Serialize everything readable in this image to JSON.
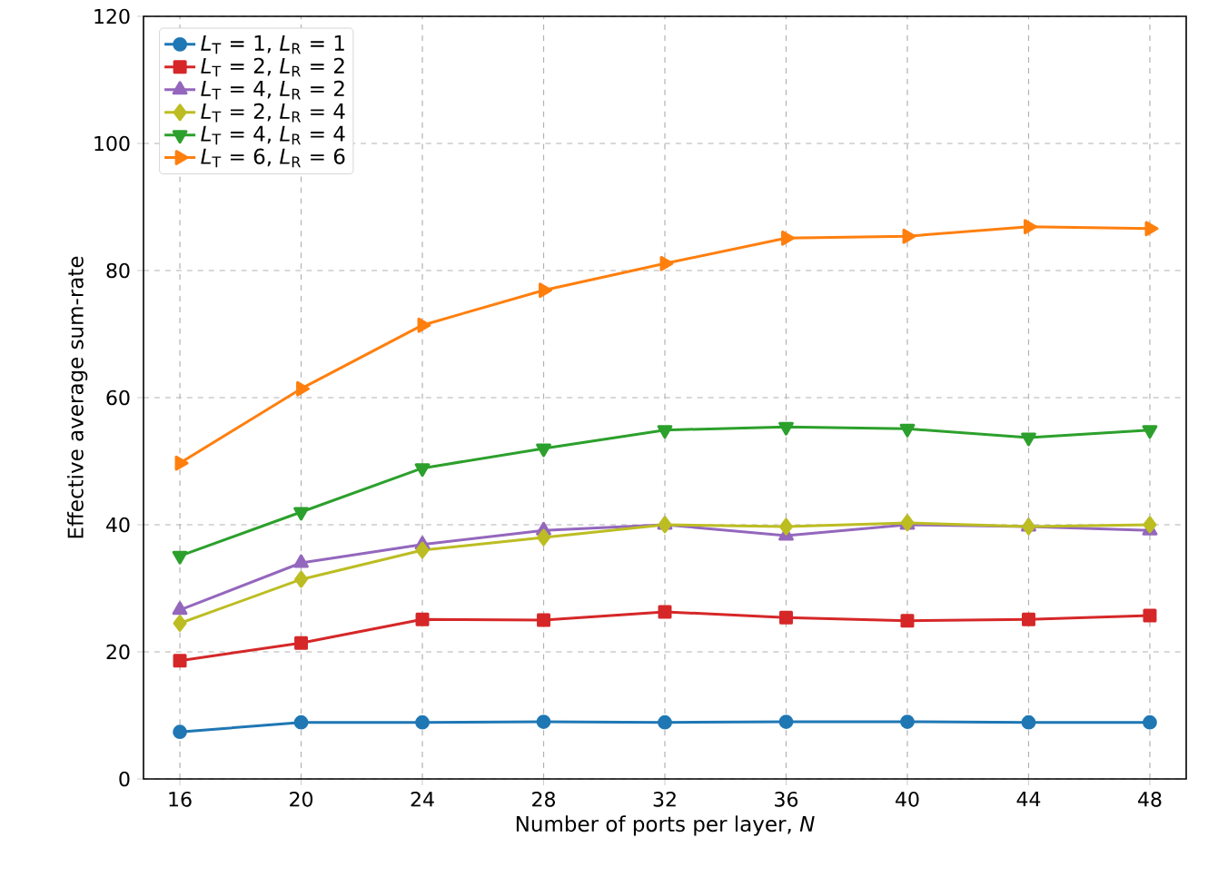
{
  "chart_data": {
    "type": "line",
    "xlabel": "Number of ports per layer, *N*",
    "ylabel": "Effective average sum-rate",
    "x": [
      16,
      20,
      24,
      28,
      32,
      36,
      40,
      44,
      48
    ],
    "series": [
      {
        "name": "*L*$_{T}$ = 1, *L*$_{R}$ = 1",
        "color": "#1f77b4",
        "marker": "circle",
        "values": [
          7.4,
          8.9,
          8.9,
          9.0,
          8.9,
          9.0,
          9.0,
          8.9,
          8.9
        ]
      },
      {
        "name": "*L*$_{T}$ = 2, *L*$_{R}$ = 2",
        "color": "#d62728",
        "marker": "square",
        "values": [
          18.6,
          21.4,
          25.1,
          25.0,
          26.3,
          25.4,
          24.9,
          25.1,
          25.7
        ]
      },
      {
        "name": "*L*$_{T}$ = 4, *L*$_{R}$ = 2",
        "color": "#9467bd",
        "marker": "triangle",
        "values": [
          26.6,
          34.0,
          36.9,
          39.1,
          40.0,
          38.3,
          40.0,
          39.7,
          39.1
        ]
      },
      {
        "name": "*L*$_{T}$ = 2, *L*$_{R}$ = 4",
        "color": "#bcbd22",
        "marker": "diamond",
        "values": [
          24.5,
          31.4,
          36.0,
          38.0,
          40.0,
          39.7,
          40.3,
          39.7,
          40.0
        ]
      },
      {
        "name": "*L*$_{T}$ = 4, *L*$_{R}$ = 4",
        "color": "#2ca02c",
        "marker": "triangle-down",
        "values": [
          35.1,
          42.0,
          48.9,
          52.0,
          54.9,
          55.4,
          55.1,
          53.7,
          54.9
        ]
      },
      {
        "name": "*L*$_{T}$ = 6, *L*$_{R}$ = 6",
        "color": "#ff7f0e",
        "marker": "triangle-right",
        "values": [
          49.7,
          61.4,
          71.4,
          76.9,
          81.1,
          85.1,
          85.4,
          86.9,
          86.6
        ]
      }
    ],
    "xlim": [
      14.8,
      49.2
    ],
    "xticks": [
      16,
      20,
      24,
      28,
      32,
      36,
      40,
      44,
      48
    ],
    "ylim": [
      0,
      120
    ],
    "yticks": [
      0,
      20,
      40,
      60,
      80,
      100,
      120
    ],
    "grid": true,
    "legend": "top left",
    "line_style": "solid"
  }
}
